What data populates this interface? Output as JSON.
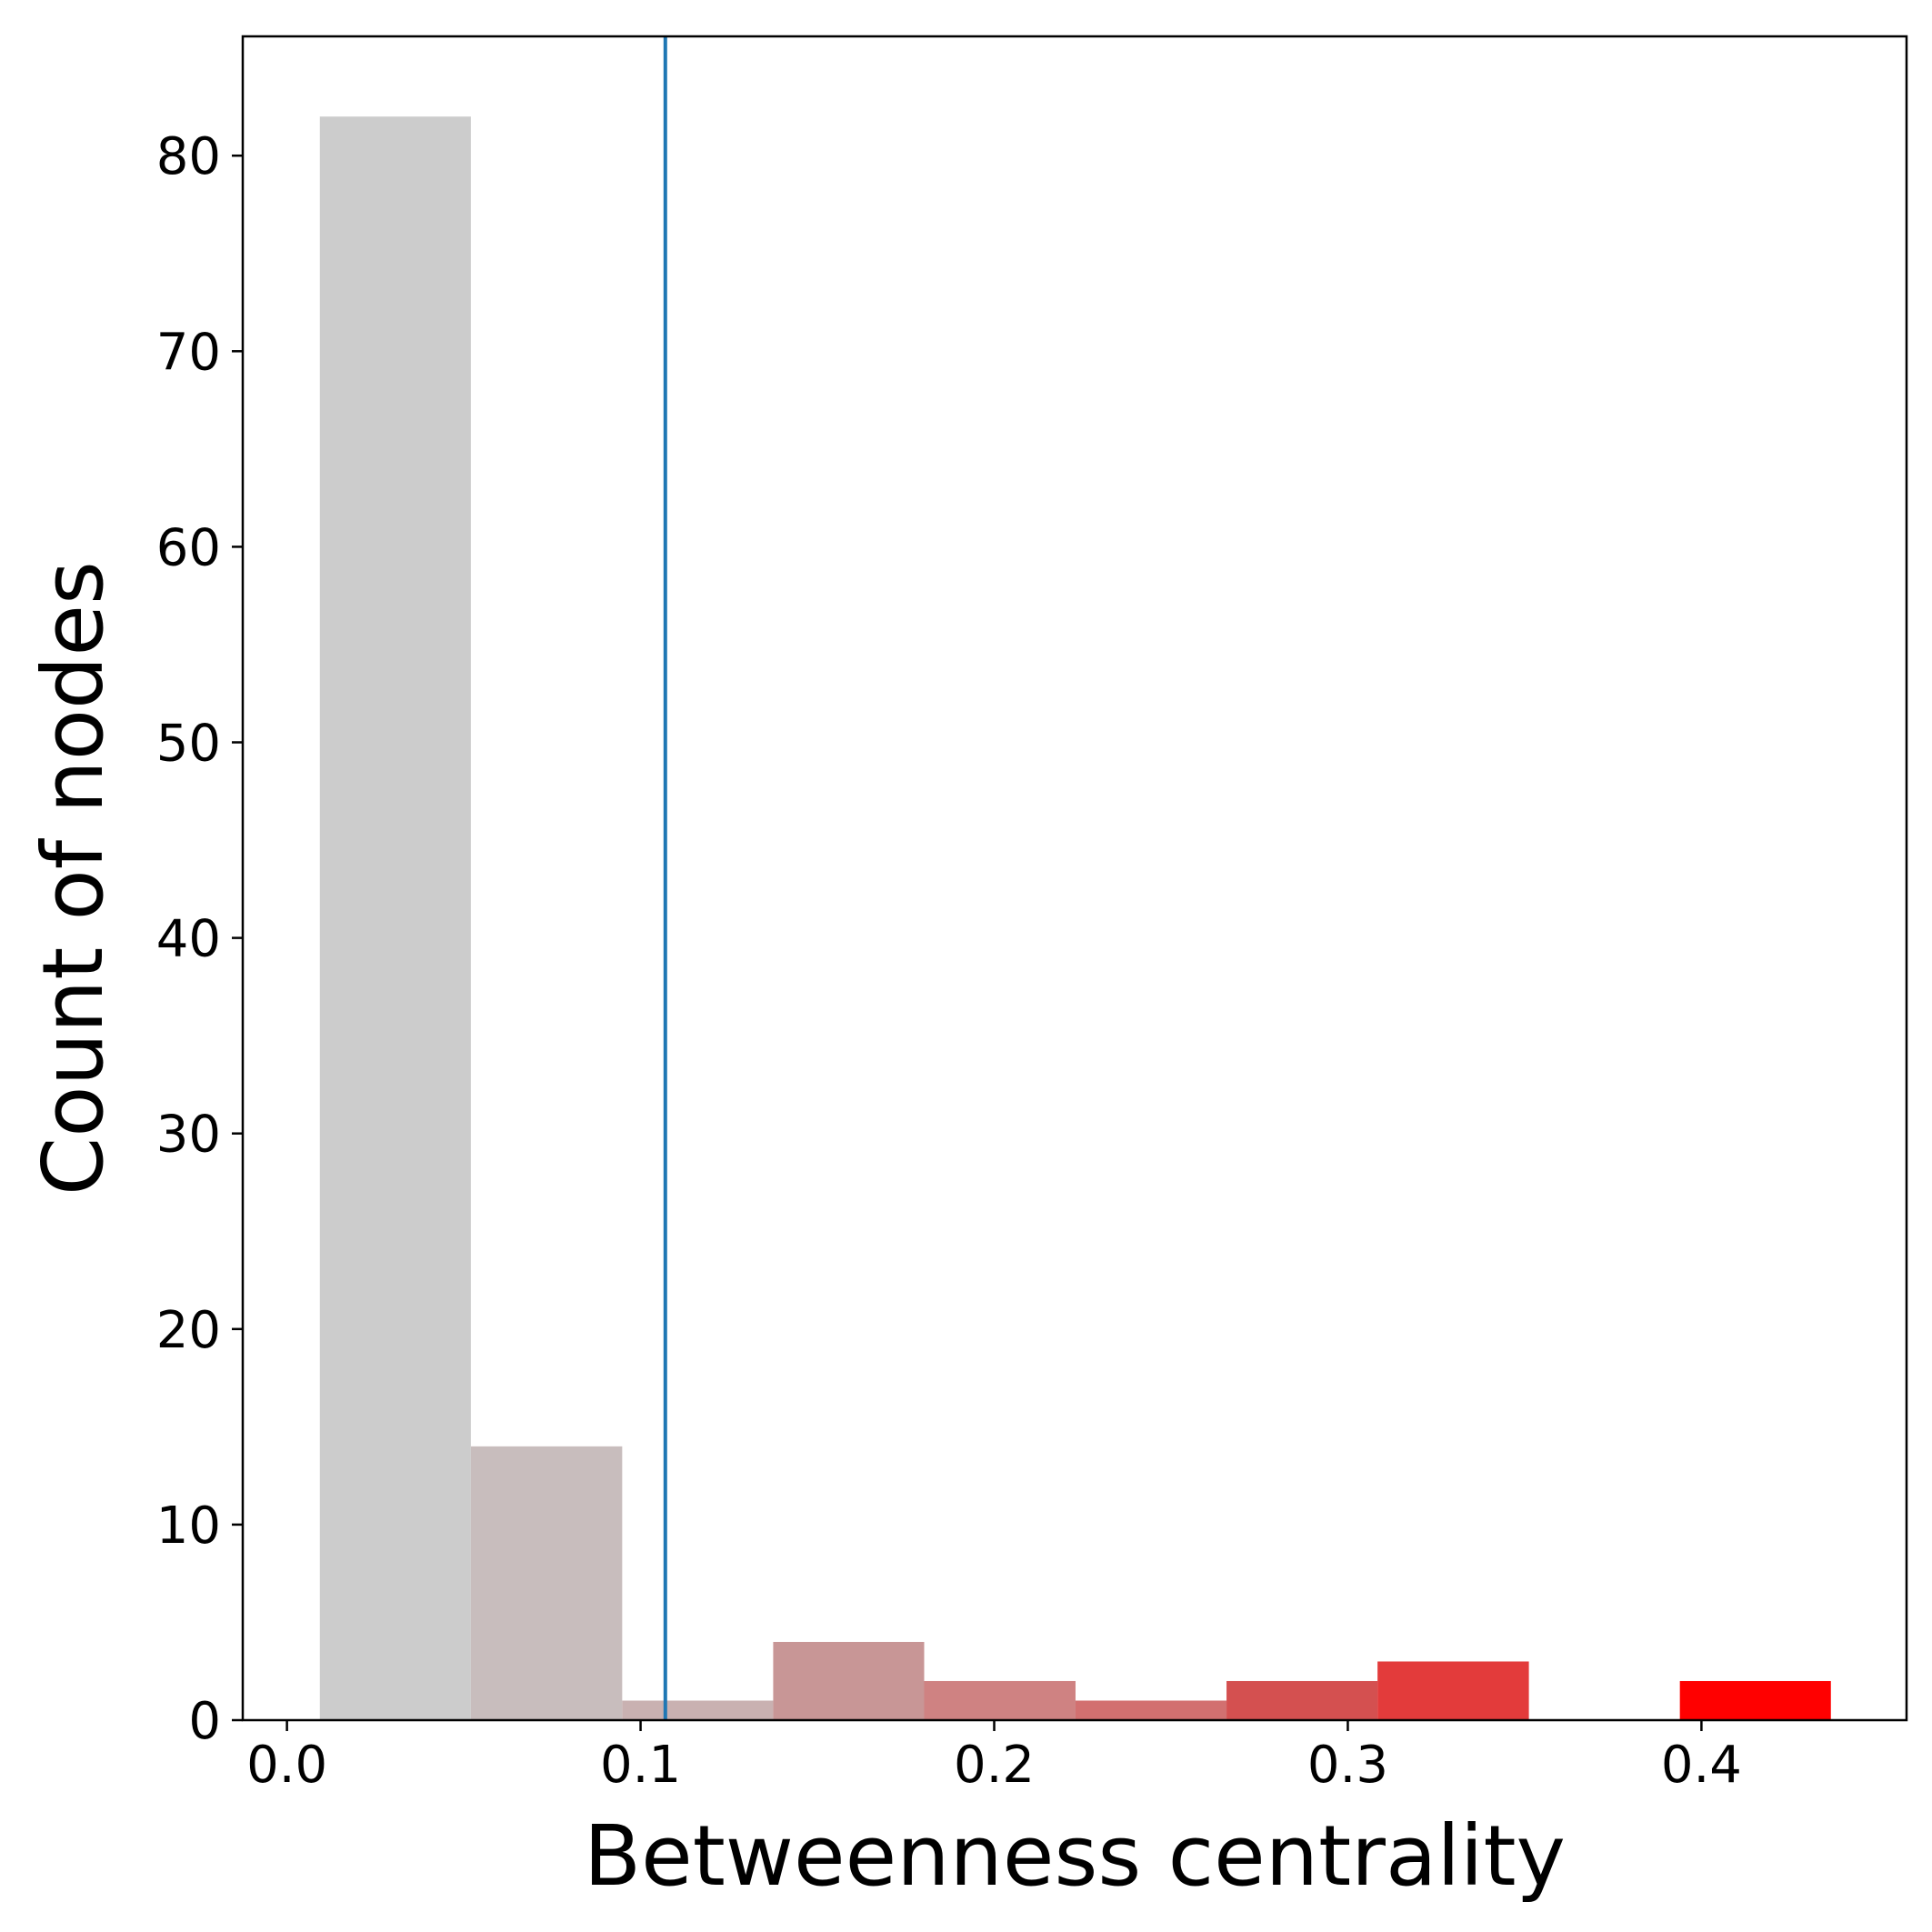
{
  "chart_data": {
    "type": "bar",
    "title": "",
    "xlabel": "Betweenness centrality",
    "ylabel": "Count of nodes",
    "xlim": [
      -0.0125,
      0.458
    ],
    "ylim": [
      0,
      86.1
    ],
    "xticks": [
      {
        "value": 0.0,
        "label": "0.0"
      },
      {
        "value": 0.1,
        "label": "0.1"
      },
      {
        "value": 0.2,
        "label": "0.2"
      },
      {
        "value": 0.3,
        "label": "0.3"
      },
      {
        "value": 0.4,
        "label": "0.4"
      }
    ],
    "yticks": [
      {
        "value": 0,
        "label": "0"
      },
      {
        "value": 10,
        "label": "10"
      },
      {
        "value": 20,
        "label": "20"
      },
      {
        "value": 30,
        "label": "30"
      },
      {
        "value": 40,
        "label": "40"
      },
      {
        "value": 50,
        "label": "50"
      },
      {
        "value": 60,
        "label": "60"
      },
      {
        "value": 70,
        "label": "70"
      },
      {
        "value": 80,
        "label": "80"
      }
    ],
    "bins": [
      {
        "x0": 0.0093,
        "x1": 0.052,
        "count": 82,
        "color": "#cccccc"
      },
      {
        "x0": 0.052,
        "x1": 0.0948,
        "count": 14,
        "color": "#c8bdbd"
      },
      {
        "x0": 0.0948,
        "x1": 0.1375,
        "count": 1,
        "color": "#c9b1b1"
      },
      {
        "x0": 0.1375,
        "x1": 0.1802,
        "count": 4,
        "color": "#c89696"
      },
      {
        "x0": 0.1802,
        "x1": 0.223,
        "count": 2,
        "color": "#cf8282"
      },
      {
        "x0": 0.223,
        "x1": 0.2657,
        "count": 1,
        "color": "#d27070"
      },
      {
        "x0": 0.2657,
        "x1": 0.3084,
        "count": 2,
        "color": "#d45050"
      },
      {
        "x0": 0.3084,
        "x1": 0.3512,
        "count": 3,
        "color": "#e33b3b"
      },
      {
        "x0": 0.3512,
        "x1": 0.3939,
        "count": 0,
        "color": "#ee2020"
      },
      {
        "x0": 0.3939,
        "x1": 0.4366,
        "count": 2,
        "color": "#ff0000"
      }
    ],
    "vline": {
      "x": 0.107,
      "color": "#1f77b4"
    },
    "grid": false,
    "legend": "none"
  }
}
